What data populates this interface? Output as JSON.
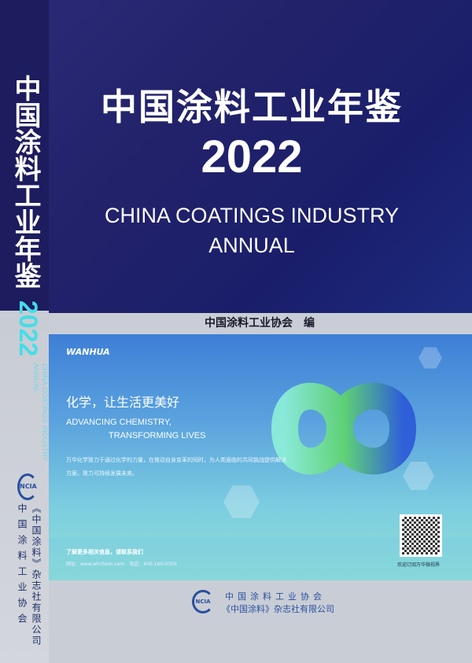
{
  "cover": {
    "title_cn": "中国涂料工业年鉴",
    "year": "2022",
    "title_en_line1": "CHINA COATINGS INDUSTRY",
    "title_en_line2": "ANNUAL",
    "editor": "中国涂料工业协会　编",
    "colors": {
      "top_bg": "#22226a",
      "year_spine": "#45dde8",
      "publisher": "#2a4fa0"
    }
  },
  "spine": {
    "title": "中国涂料工业年鉴",
    "year": "2022",
    "en_line1": "CHINA COATINGS INDUSTRY",
    "en_line2": "ANNUAL",
    "logo": "NCIA",
    "pub1": "《中国涂料》杂志社有限公司",
    "pub2": "中国涂料工业协会"
  },
  "ad": {
    "logo": "WANHUA",
    "slogan": "化学，让生活更美好",
    "en_line1": "ADVANCING CHEMISTRY,",
    "en_line2": "TRANSFORMING LIVES",
    "body": "万华化学致力于通过化学的力量，在推动自身变革的同时，为人类面临的共同挑战提供解决方案，致力可持续发展未来。",
    "contact": "了解更多相关信息，请联系我们",
    "contact_detail": "网址：www.whchem.com　电话：400-160-0309",
    "qr_caption": "欢迎订阅万华微视界"
  },
  "publisher": {
    "logo": "NCIA",
    "line1": "中国涂料工业协会",
    "line2": "《中国涂料》杂志社有限公司"
  }
}
